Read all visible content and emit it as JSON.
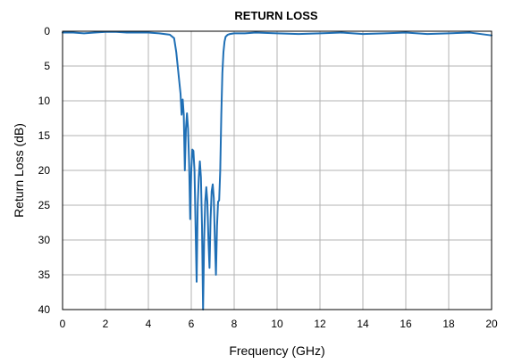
{
  "chart_data": {
    "type": "line",
    "title": "RETURN LOSS",
    "xlabel": "Frequency (GHz)",
    "ylabel": "Return Loss (dB)",
    "xlim": [
      0,
      20
    ],
    "ylim": [
      0,
      40
    ],
    "y_inverted": true,
    "grid": true,
    "x_ticks": [
      "0",
      "2",
      "4",
      "6",
      "8",
      "10",
      "12",
      "14",
      "16",
      "18",
      "20"
    ],
    "y_ticks": [
      "0",
      "5",
      "10",
      "15",
      "20",
      "25",
      "30",
      "35",
      "40"
    ],
    "series": [
      {
        "color": "#1f6fb5",
        "x": [
          0,
          0.5,
          1,
          1.5,
          2,
          2.5,
          3,
          3.5,
          4,
          4.5,
          5,
          5.2,
          5.3,
          5.4,
          5.5,
          5.55,
          5.6,
          5.65,
          5.7,
          5.75,
          5.8,
          5.85,
          5.9,
          5.95,
          6.0,
          6.05,
          6.1,
          6.15,
          6.2,
          6.25,
          6.3,
          6.35,
          6.4,
          6.45,
          6.5,
          6.55,
          6.6,
          6.65,
          6.7,
          6.75,
          6.8,
          6.85,
          6.9,
          6.95,
          7.0,
          7.05,
          7.1,
          7.15,
          7.2,
          7.25,
          7.3,
          7.35,
          7.4,
          7.45,
          7.5,
          7.55,
          7.6,
          7.7,
          7.8,
          8.0,
          8.5,
          9,
          10,
          11,
          12,
          13,
          14,
          15,
          16,
          17,
          18,
          19,
          20
        ],
        "y": [
          0.2,
          0.2,
          0.3,
          0.2,
          0.1,
          0.1,
          0.2,
          0.2,
          0.2,
          0.3,
          0.5,
          1,
          3,
          6,
          9,
          12,
          9.8,
          12,
          20,
          14,
          11.8,
          14,
          19,
          27,
          20,
          17,
          17.2,
          20,
          28,
          36,
          25,
          21,
          18.7,
          21,
          28,
          40,
          30,
          24.5,
          22.4,
          24.5,
          30,
          34,
          27,
          23,
          22,
          24,
          30,
          35,
          28,
          24.5,
          24.3,
          20,
          12,
          6,
          3,
          1.5,
          0.8,
          0.5,
          0.4,
          0.3,
          0.3,
          0.2,
          0.3,
          0.4,
          0.3,
          0.2,
          0.4,
          0.3,
          0.2,
          0.4,
          0.3,
          0.2,
          0.6
        ]
      }
    ]
  }
}
